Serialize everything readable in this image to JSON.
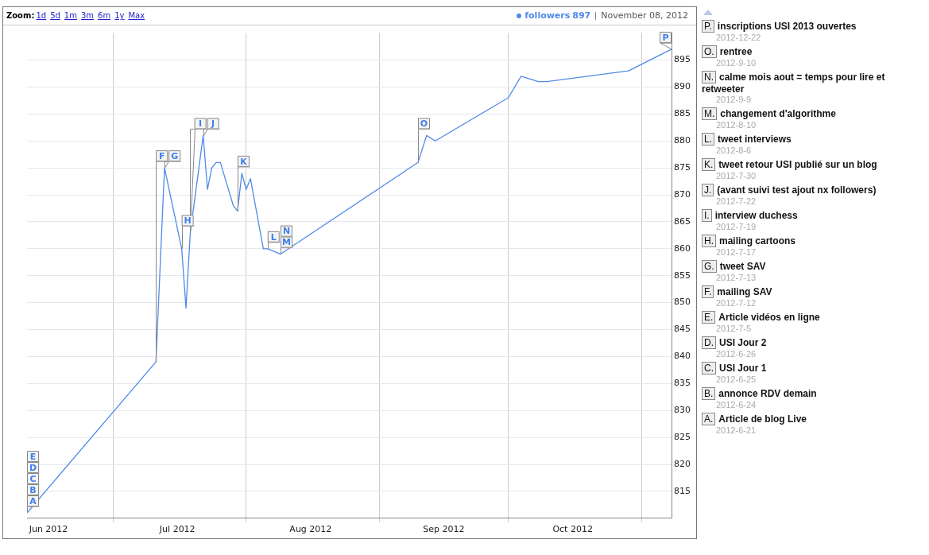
{
  "chart_data": {
    "type": "line",
    "x": [
      "2012-06-11",
      "2012-07-11",
      "2012-07-13",
      "2012-07-17",
      "2012-07-18",
      "2012-07-19",
      "2012-07-22",
      "2012-07-23",
      "2012-07-24",
      "2012-07-25",
      "2012-07-26",
      "2012-07-29",
      "2012-07-30",
      "2012-07-31",
      "2012-08-01",
      "2012-08-02",
      "2012-08-05",
      "2012-08-06",
      "2012-08-09",
      "2012-09-10",
      "2012-09-12",
      "2012-09-14",
      "2012-10-01",
      "2012-10-04",
      "2012-10-08",
      "2012-10-10",
      "2012-10-29",
      "2012-11-08"
    ],
    "series": [
      {
        "name": "followers",
        "color": "#4f8ae8",
        "values": [
          811,
          839,
          875,
          860,
          849,
          863,
          881,
          871,
          875,
          876,
          876,
          868,
          867,
          874,
          871,
          873,
          860,
          860,
          859,
          876,
          881,
          880,
          888,
          892,
          891,
          891,
          893,
          897
        ]
      }
    ],
    "xlim": [
      "2012-06-11",
      "2012-11-08"
    ],
    "xticks": [
      {
        "value": "2012-06-16",
        "label": "Jun 2012"
      },
      {
        "value": "2012-07-01",
        "label": null
      },
      {
        "value": "2012-07-16",
        "label": "Jul 2012"
      },
      {
        "value": "2012-08-01",
        "label": null
      },
      {
        "value": "2012-08-16",
        "label": "Aug 2012"
      },
      {
        "value": "2012-09-01",
        "label": null
      },
      {
        "value": "2012-09-16",
        "label": "Sep 2012"
      },
      {
        "value": "2012-10-01",
        "label": null
      },
      {
        "value": "2012-10-16",
        "label": "Oct 2012"
      },
      {
        "value": "2012-11-01",
        "label": null
      }
    ],
    "ylim": [
      810,
      900
    ],
    "yticks": [
      815,
      820,
      825,
      830,
      835,
      840,
      845,
      850,
      855,
      860,
      865,
      870,
      875,
      880,
      885,
      890,
      895
    ],
    "grid": true,
    "legend": "top right",
    "marker": "none",
    "line_style": "solid",
    "annotations": [
      "Zoom:",
      "1d",
      "5d",
      "1m",
      "3m",
      "6m",
      "1y",
      "Max",
      "897",
      "November 08, 2012",
      {
        "text": "A",
        "x": "2012-06-11",
        "y": 811
      },
      {
        "text": "B",
        "x": "2012-06-11",
        "y": 811
      },
      {
        "text": "C",
        "x": "2012-06-11",
        "y": 811
      },
      {
        "text": "D",
        "x": "2012-06-11",
        "y": 811
      },
      {
        "text": "E",
        "x": "2012-06-11",
        "y": 811
      },
      {
        "text": "F",
        "x": "2012-07-11",
        "y": 839
      },
      {
        "text": "G",
        "x": "2012-07-13",
        "y": 875
      },
      {
        "text": "H",
        "x": "2012-07-17",
        "y": 860
      },
      {
        "text": "I",
        "x": "2012-07-19",
        "y": 863
      },
      {
        "text": "J",
        "x": "2012-07-22",
        "y": 881
      },
      {
        "text": "K",
        "x": "2012-07-30",
        "y": 867
      },
      {
        "text": "L",
        "x": "2012-08-06",
        "y": 860
      },
      {
        "text": "M",
        "x": "2012-08-09",
        "y": 859
      },
      {
        "text": "N",
        "x": "2012-08-09",
        "y": 859
      },
      {
        "text": "O",
        "x": "2012-09-10",
        "y": 876
      },
      {
        "text": "P",
        "x": "2012-11-08",
        "y": 897
      },
      "P. inscriptions USI 2013 ouvertes",
      "2012-12-22",
      "O. rentree",
      "2012-9-10",
      "N. calme mois aout = temps pour lire et retweeter",
      "2012-9-9",
      "M. changement d'algorithme",
      "2012-8-10",
      "L. tweet interviews",
      "2012-8-6",
      "K. tweet retour USI publié sur un blog",
      "2012-7-30",
      "J. (avant suivi test ajout nx followers)",
      "2012-7-22",
      "I. interview duchess",
      "2012-7-19",
      "H. mailing cartoons",
      "2012-7-17",
      "G. tweet SAV",
      "2012-7-13",
      "F. mailing SAV",
      "2012-7-12",
      "E. Article vidéos en ligne",
      "2012-7-5",
      "D. USI Jour 2",
      "2012-6-26",
      "C. USI Jour 1",
      "2012-6-25",
      "B. annonce RDV demain",
      "2012-6-24",
      "A. Article de blog Live",
      "2012-6-21"
    ]
  }
}
